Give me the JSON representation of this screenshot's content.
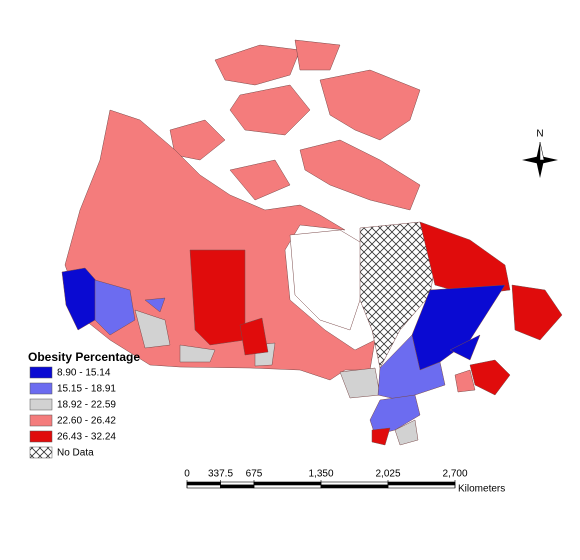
{
  "legend": {
    "title": "Obesity Percentage",
    "items": [
      {
        "label": "8.90 - 15.14",
        "color": "#0a0ad2"
      },
      {
        "label": "15.15 - 18.91",
        "color": "#6c6cf0"
      },
      {
        "label": "18.92 - 22.59",
        "color": "#d2d2d2"
      },
      {
        "label": "22.60 - 26.42",
        "color": "#f47c7c"
      },
      {
        "label": "26.43 - 32.24",
        "color": "#e00c0c"
      },
      {
        "label": "No Data",
        "pattern": "crosshatch"
      }
    ]
  },
  "scale_bar": {
    "unit": "Kilometers",
    "ticks": [
      0,
      337.5,
      675,
      {
        "value": 1350,
        "label": "1,350"
      },
      {
        "value": 2025,
        "label": "2,025"
      },
      {
        "value": 2700,
        "label": "2,700"
      }
    ]
  },
  "north_arrow": {
    "label": "N"
  }
}
